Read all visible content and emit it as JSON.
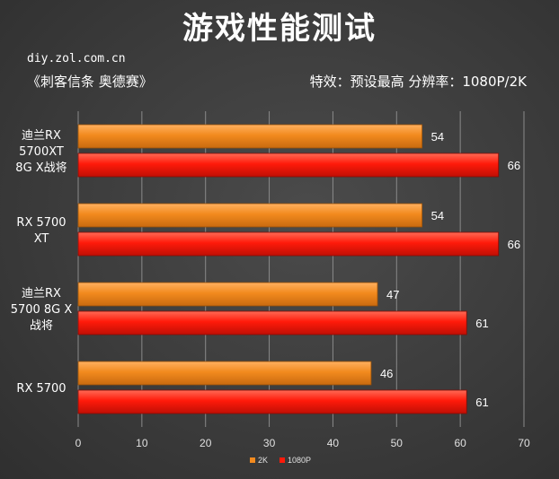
{
  "header": {
    "title": "游戏性能测试",
    "site": "diy.zol.com.cn",
    "game": "《刺客信条 奥德赛》",
    "settings": "特效：预设最高   分辨率：1080P/2K"
  },
  "chart_data": {
    "type": "bar",
    "orientation": "horizontal",
    "categories": [
      "迪兰RX 5700XT 8G X战将",
      "RX 5700 XT",
      "迪兰RX 5700 8G X 战将",
      "RX 5700"
    ],
    "category_lines": [
      [
        "迪兰RX",
        "5700XT",
        "8G X战将"
      ],
      [
        "RX 5700",
        "XT"
      ],
      [
        "迪兰RX",
        "5700 8G X",
        "战将"
      ],
      [
        "RX 5700"
      ]
    ],
    "series": [
      {
        "name": "2K",
        "values": [
          54,
          54,
          47,
          46
        ],
        "color": "#F28A1E"
      },
      {
        "name": "1080P",
        "values": [
          66,
          66,
          61,
          61
        ],
        "color": "#FF1A0A"
      }
    ],
    "xlim": [
      0,
      70
    ],
    "xticks": [
      0,
      10,
      20,
      30,
      40,
      50,
      60,
      70
    ],
    "grid": true,
    "legend": "bottom"
  }
}
